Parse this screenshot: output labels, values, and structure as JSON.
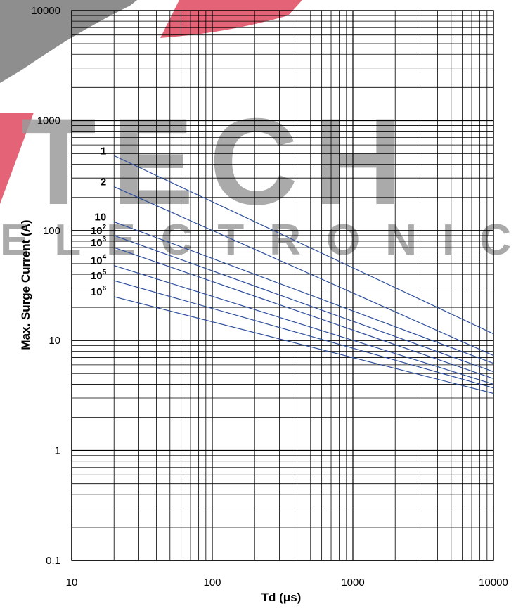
{
  "watermark": {
    "word": "TECH",
    "sub": "ELECTRONIC"
  },
  "colors": {
    "line": "#2e4f9c",
    "grid": "#000000",
    "watermark_grey": "#8a8a8a",
    "watermark_red": "#e0485f"
  },
  "chart_data": {
    "type": "line",
    "title": "",
    "xlabel": "Td (μs)",
    "ylabel": "Max. Surge Current (A)",
    "xscale": "log",
    "yscale": "log",
    "xlim": [
      10,
      10000
    ],
    "ylim": [
      0.1,
      10000
    ],
    "grid": true,
    "x_ticks": [
      "10",
      "100",
      "1000",
      "10000"
    ],
    "y_ticks": [
      "0.1",
      "1",
      "10",
      "100",
      "1000",
      "10000"
    ],
    "series": [
      {
        "name": "1",
        "base": "1",
        "exp": "",
        "x": [
          20,
          10000
        ],
        "y": [
          480,
          11.5
        ]
      },
      {
        "name": "2",
        "base": "2",
        "exp": "",
        "x": [
          20,
          10000
        ],
        "y": [
          250,
          7.3
        ]
      },
      {
        "name": "10",
        "base": "10",
        "exp": "",
        "x": [
          20,
          10000
        ],
        "y": [
          120,
          6.2
        ]
      },
      {
        "name": "10^2",
        "base": "10",
        "exp": "2",
        "x": [
          20,
          10000
        ],
        "y": [
          90,
          5.2
        ]
      },
      {
        "name": "10^3",
        "base": "10",
        "exp": "3",
        "x": [
          20,
          10000
        ],
        "y": [
          70,
          4.5
        ]
      },
      {
        "name": "10^4",
        "base": "10",
        "exp": "4",
        "x": [
          20,
          10000
        ],
        "y": [
          48,
          4.0
        ]
      },
      {
        "name": "10^5",
        "base": "10",
        "exp": "5",
        "x": [
          20,
          10000
        ],
        "y": [
          35,
          3.7
        ]
      },
      {
        "name": "10^6",
        "base": "10",
        "exp": "6",
        "x": [
          20,
          10000
        ],
        "y": [
          25,
          3.3
        ]
      }
    ]
  }
}
